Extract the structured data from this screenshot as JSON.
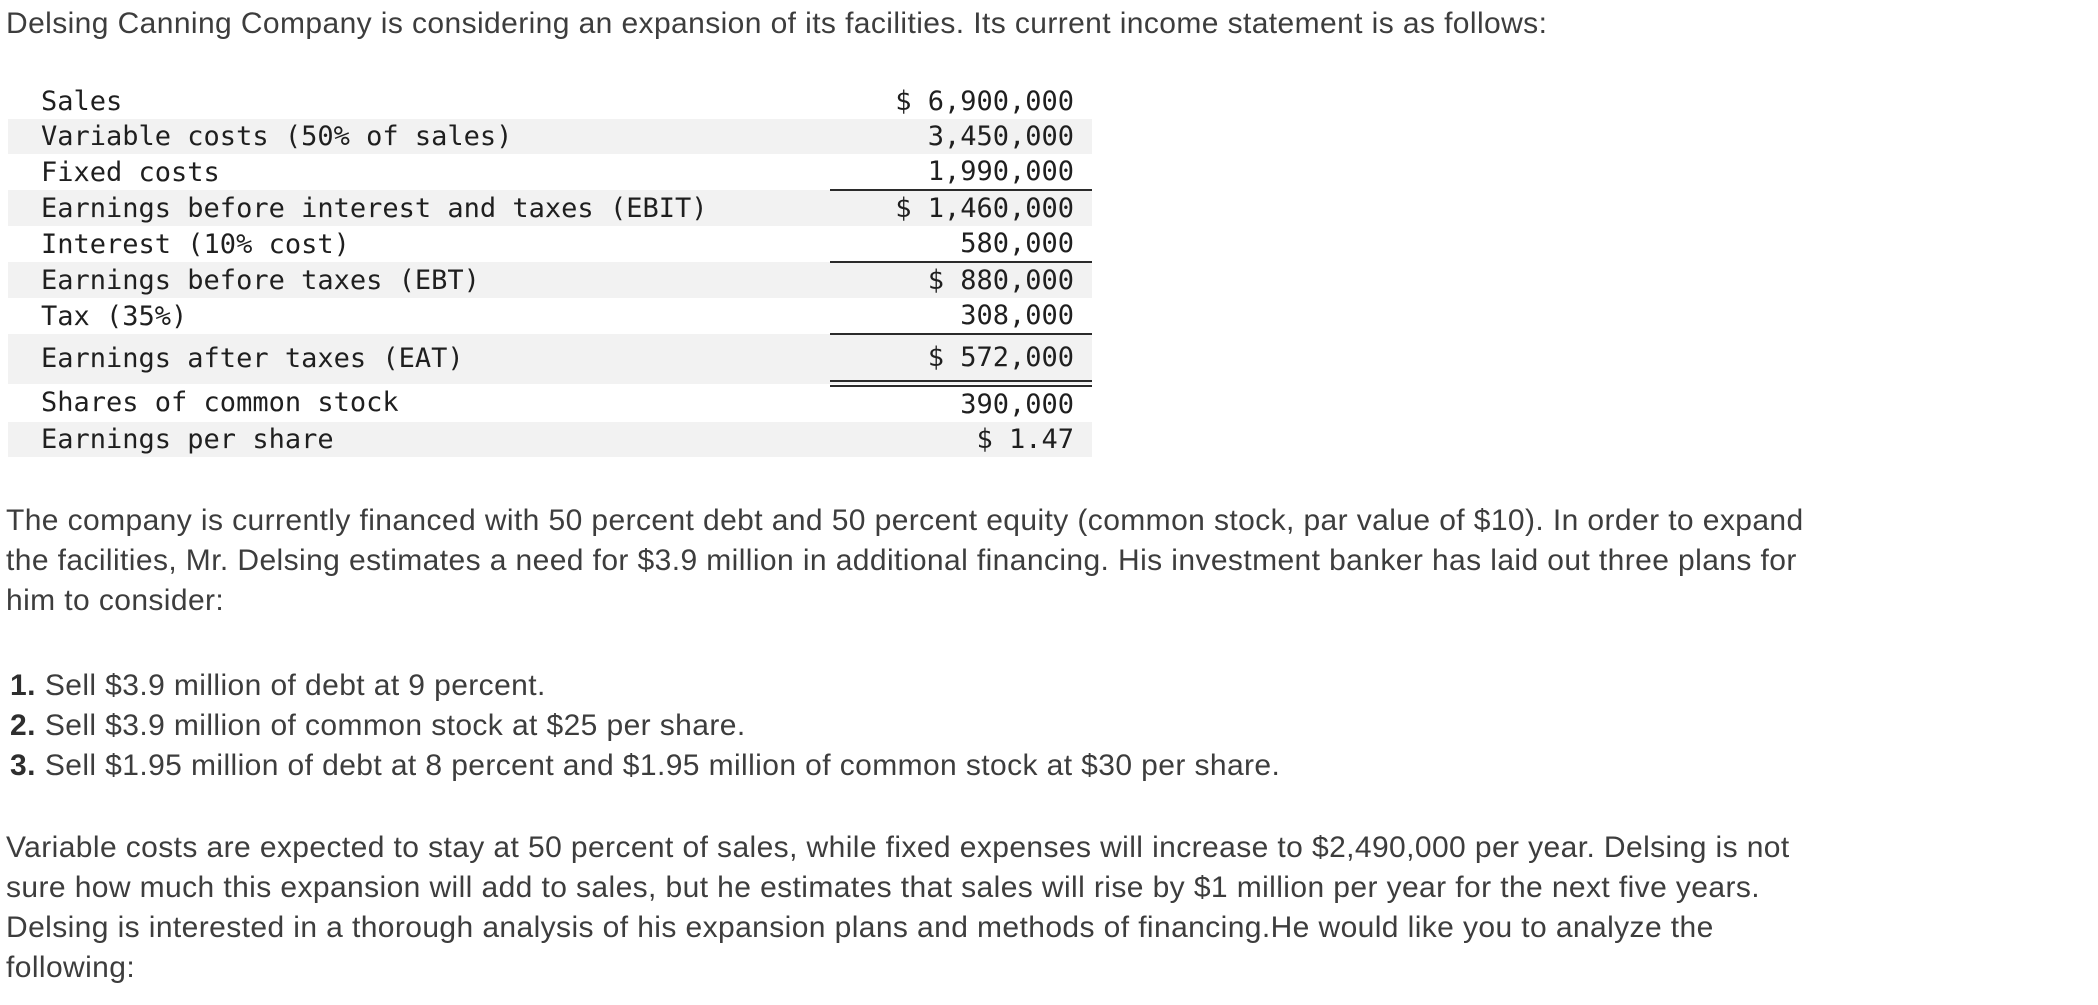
{
  "intro": {
    "line": "Delsing Canning Company is considering an expansion of its facilities. Its current income statement is as follows:"
  },
  "income_statement": {
    "rows": [
      {
        "label": "Sales",
        "value": "$ 6,900,000"
      },
      {
        "label": "Variable costs (50% of sales)",
        "value": "3,450,000"
      },
      {
        "label": "Fixed costs",
        "value": "1,990,000"
      },
      {
        "label": "Earnings before interest and taxes (EBIT)",
        "value": "$ 1,460,000"
      },
      {
        "label": "Interest (10% cost)",
        "value": "580,000"
      },
      {
        "label": "Earnings before taxes (EBT)",
        "value": "$ 880,000"
      },
      {
        "label": "Tax (35%)",
        "value": "308,000"
      },
      {
        "label": "Earnings after taxes (EAT)",
        "value": "$ 572,000"
      },
      {
        "label": "Shares of common stock",
        "value": "390,000"
      },
      {
        "label": "Earnings per share",
        "value": "$ 1.47"
      }
    ],
    "stripe_color": "#f2f2f2",
    "rule_color": "#2b2b2b"
  },
  "para_financing": {
    "lines": [
      "The company is currently financed with 50 percent debt and 50 percent equity (common stock, par value of $10). In order to expand",
      "the facilities, Mr. Delsing estimates a need for $3.9 million in additional financing. His investment banker has laid out three plans for",
      "him to consider:"
    ]
  },
  "plans": {
    "items": [
      {
        "num": "1.",
        "text": "Sell $3.9 million of debt at 9 percent."
      },
      {
        "num": "2.",
        "text": "Sell $3.9 million of common stock at $25 per share."
      },
      {
        "num": "3.",
        "text": "Sell $1.95 million of debt at 8 percent and $1.95 million of common stock at $30 per share."
      }
    ]
  },
  "para_expansion": {
    "lines": [
      "Variable costs are expected to stay at 50 percent of sales, while fixed expenses will increase to $2,490,000 per year. Delsing is not",
      "sure how much this expansion will add to sales, but he estimates that sales will rise by $1 million per year for the next five years.",
      "Delsing is interested in a thorough analysis of his expansion plans and methods of financing.He would like you to analyze the",
      "following:"
    ]
  }
}
